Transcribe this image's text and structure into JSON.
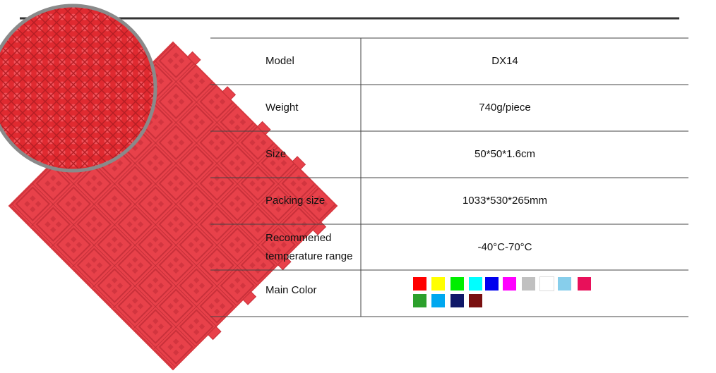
{
  "table": {
    "rows": [
      [
        "Model",
        "DX14"
      ],
      [
        "Weight",
        "740g/piece"
      ],
      [
        "Size",
        "50*50*1.6cm"
      ],
      [
        "Packing size",
        "1033*530*265mm"
      ],
      [
        "Recommened\ntemperature range",
        "-40°C-70°C"
      ],
      [
        "Main Color"
      ]
    ]
  }
}
